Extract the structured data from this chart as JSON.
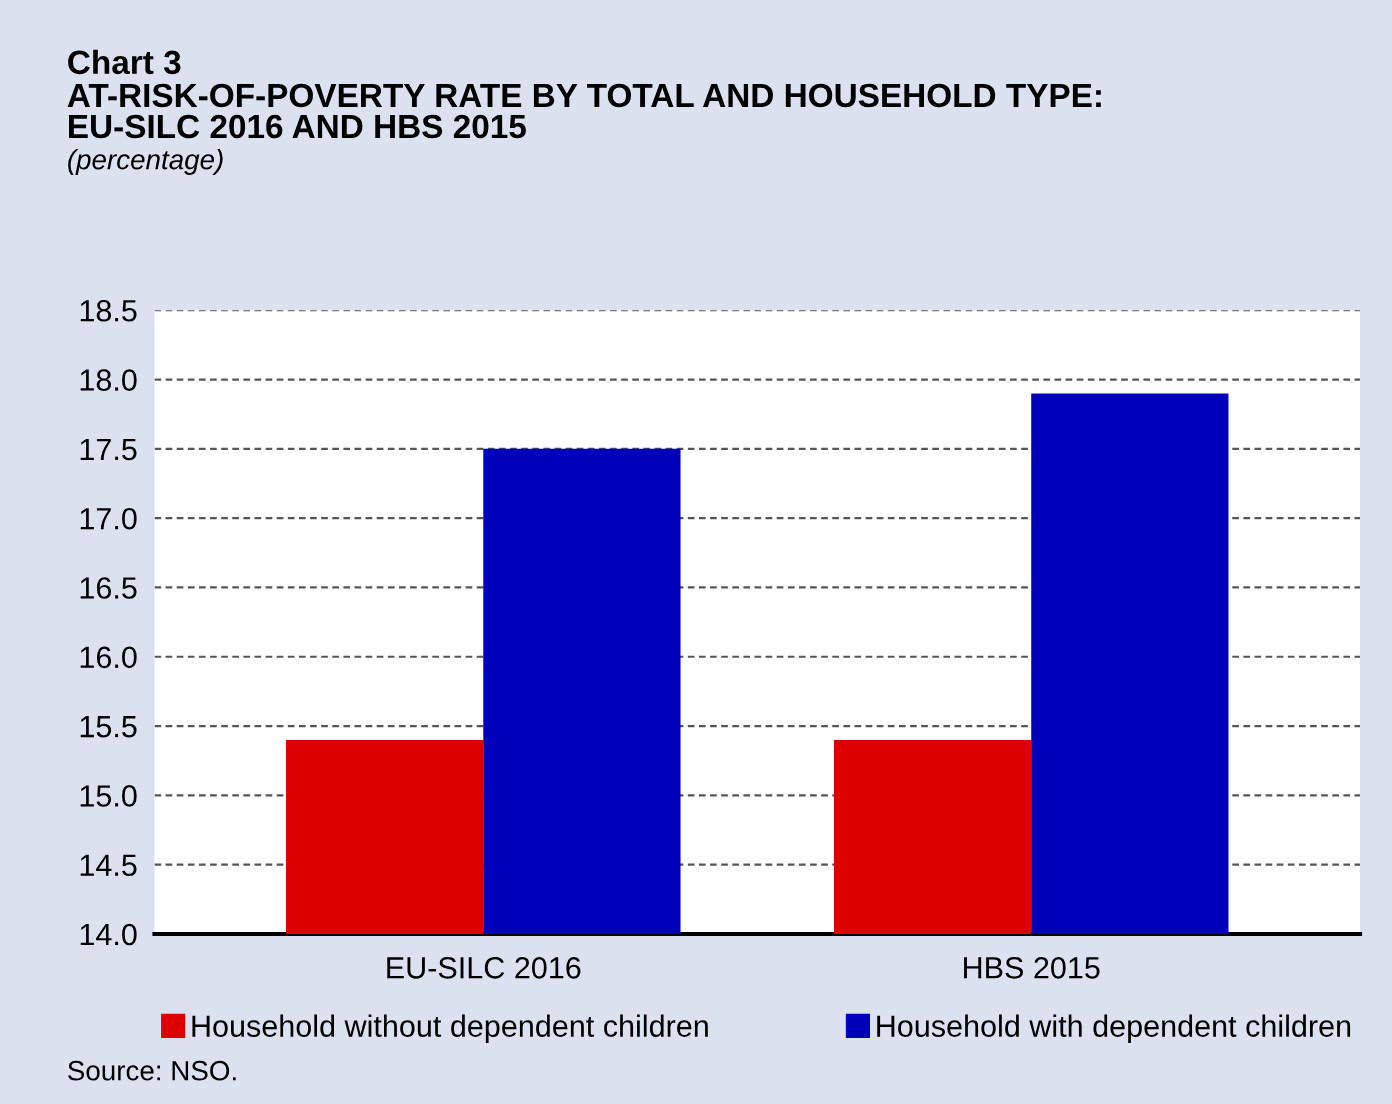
{
  "chart_data": {
    "type": "bar",
    "title": "Chart 3",
    "subtitle": "AT-RISK-OF-POVERTY RATE BY TOTAL AND HOUSEHOLD TYPE:\nEU-SILC 2016 AND HBS 2015",
    "ylabel": "(percentage)",
    "categories": [
      "EU-SILC 2016",
      "HBS 2015"
    ],
    "series": [
      {
        "name": "Household without dependent children",
        "color": "#dd0000",
        "values": [
          15.4,
          15.4
        ]
      },
      {
        "name": "Household with dependent children",
        "color": "#0000bb",
        "values": [
          17.5,
          17.9
        ]
      }
    ],
    "ylim": [
      14.0,
      18.5
    ],
    "yticks": [
      {
        "value": 14.0,
        "label": "14.0"
      },
      {
        "value": 14.5,
        "label": "14.5"
      },
      {
        "value": 15.0,
        "label": "15.0"
      },
      {
        "value": 15.5,
        "label": "15.5"
      },
      {
        "value": 16.0,
        "label": "16.0"
      },
      {
        "value": 16.5,
        "label": "16.5"
      },
      {
        "value": 17.0,
        "label": "17.0"
      },
      {
        "value": 17.5,
        "label": "17.5"
      },
      {
        "value": 18.0,
        "label": "18.0"
      },
      {
        "value": 18.5,
        "label": "18.5"
      }
    ],
    "grid": "y",
    "legend": "bottom",
    "annotations": [
      "Source: NSO."
    ]
  }
}
